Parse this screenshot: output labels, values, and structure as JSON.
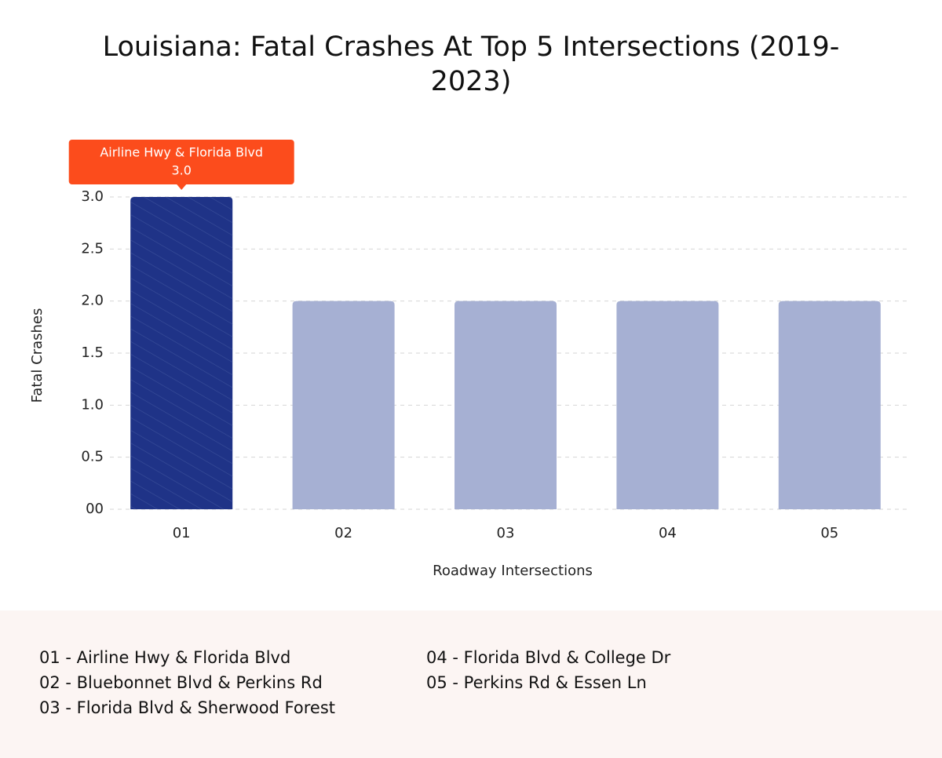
{
  "chart_data": {
    "type": "bar",
    "title": "Louisiana: Fatal Crashes At Top 5 Intersections (2019-2023)",
    "xlabel": "Roadway Intersections",
    "ylabel": "Fatal Crashes",
    "categories": [
      "01",
      "02",
      "03",
      "04",
      "05"
    ],
    "values": [
      3,
      2,
      2,
      2,
      2
    ],
    "value_labels": [
      "3.0",
      null,
      null,
      null,
      null
    ],
    "colors": [
      "#1f3387",
      "#a6b0d3",
      "#a6b0d3",
      "#a6b0d3",
      "#a6b0d3"
    ],
    "annotation": "Airline Hwy & Florida Blvd",
    "ylim": [
      0,
      3
    ],
    "yticks": [
      {
        "value": 0,
        "label": "00"
      },
      0.5,
      {
        "value": 1,
        "label": "1.0"
      },
      1.5,
      {
        "value": 2,
        "label": "2.0"
      },
      2.5,
      {
        "value": 3,
        "label": "3.0"
      }
    ],
    "grid": true,
    "legend_items": [
      "01 - Airline Hwy & Florida Blvd",
      "02 - Bluebonnet Blvd & Perkins Rd",
      "03 - Florida Blvd & Sherwood Forest",
      "04 - Florida Blvd & College Dr",
      "05 - Perkins Rd & Essen Ln"
    ]
  }
}
